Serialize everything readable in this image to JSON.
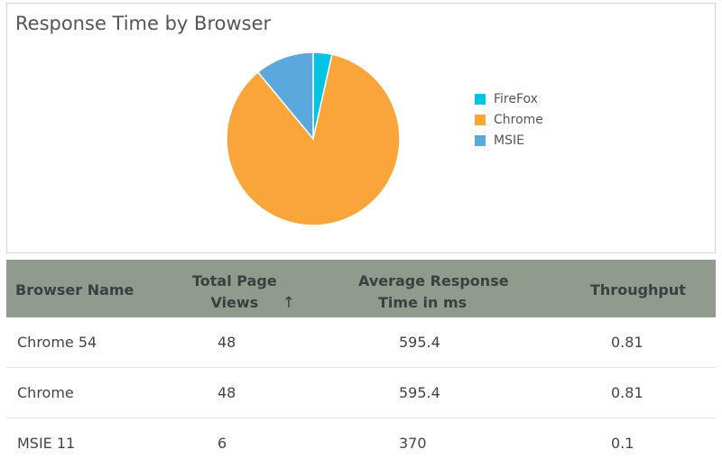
{
  "chart_data": {
    "type": "pie",
    "title": "Response Time by Browser",
    "labels": [
      "FireFox",
      "Chrome",
      "MSIE"
    ],
    "values": [
      3.5,
      85.5,
      11.0
    ],
    "colors": [
      "#00c4e0",
      "#f9a53a",
      "#5ba8dc"
    ],
    "legend_position": "right"
  },
  "table": {
    "headers": {
      "browser": "Browser Name",
      "views_line1": "Total Page",
      "views_line2": "Views",
      "response_line1": "Average Response",
      "response_line2": "Time in ms",
      "throughput": "Throughput"
    },
    "sort_indicator": "↑",
    "rows": [
      {
        "browser": "Chrome 54",
        "views": "48",
        "response": "595.4",
        "throughput": "0.81"
      },
      {
        "browser": "Chrome",
        "views": "48",
        "response": "595.4",
        "throughput": "0.81"
      },
      {
        "browser": "MSIE 11",
        "views": "6",
        "response": "370",
        "throughput": "0.1"
      }
    ]
  }
}
